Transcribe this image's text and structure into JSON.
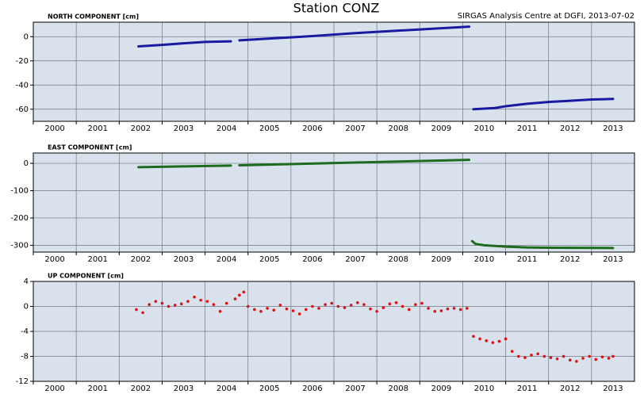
{
  "title": "Station CONZ",
  "subtitle": "SIRGAS Analysis Centre at DGFI, 2013-07-02",
  "chart_data": [
    {
      "type": "line",
      "title": "NORTH COMPONENT [cm]",
      "color": "#1a1aa0",
      "x": [
        2002.45,
        2003.0,
        2003.5,
        2004.0,
        2004.6,
        2004.7,
        2004.8,
        2005.5,
        2006.5,
        2007.5,
        2008.5,
        2009.5,
        2010.15,
        2010.2,
        2010.25,
        2010.75,
        2011.0,
        2011.5,
        2012.0,
        2012.5,
        2013.0,
        2013.5
      ],
      "values": [
        -8,
        -6.8,
        -5.5,
        -4.3,
        -3.8,
        null,
        -3,
        -1.5,
        0.5,
        3,
        5,
        7,
        8.3,
        null,
        -60,
        -59,
        -57.5,
        -55.5,
        -54,
        -53,
        -52,
        -51.5
      ],
      "xlim": [
        2000,
        2014
      ],
      "ylim": [
        -70,
        12
      ],
      "xticks": [
        2000,
        2001,
        2002,
        2003,
        2004,
        2005,
        2006,
        2007,
        2008,
        2009,
        2010,
        2011,
        2012,
        2013
      ],
      "yticks": [
        0,
        -20,
        -40,
        -60
      ],
      "grid": true
    },
    {
      "type": "line",
      "title": "EAST COMPONENT [cm]",
      "color": "#1e6b1e",
      "x": [
        2002.45,
        2003.5,
        2004.6,
        2004.7,
        2004.8,
        2007.5,
        2010.15,
        2010.2,
        2010.22,
        2010.3,
        2010.5,
        2011.0,
        2011.5,
        2012.0,
        2013.5
      ],
      "values": [
        -14,
        -11,
        -8,
        null,
        -7,
        3,
        13,
        null,
        -285,
        -295,
        -300,
        -305,
        -308,
        -309,
        -310
      ],
      "xlim": [
        2000,
        2014
      ],
      "ylim": [
        -325,
        38
      ],
      "xticks": [
        2000,
        2001,
        2002,
        2003,
        2004,
        2005,
        2006,
        2007,
        2008,
        2009,
        2010,
        2011,
        2012,
        2013
      ],
      "yticks": [
        0,
        -100,
        -200,
        -300
      ],
      "grid": true
    },
    {
      "type": "scatter",
      "title": "UP COMPONENT [cm]",
      "color": "#dd1111",
      "x": [
        2002.4,
        2002.55,
        2002.7,
        2002.85,
        2003.0,
        2003.15,
        2003.3,
        2003.45,
        2003.6,
        2003.75,
        2003.9,
        2004.05,
        2004.2,
        2004.35,
        2004.5,
        2004.7,
        2004.8,
        2004.9,
        2005.0,
        2005.15,
        2005.3,
        2005.45,
        2005.6,
        2005.75,
        2005.9,
        2006.05,
        2006.2,
        2006.35,
        2006.5,
        2006.65,
        2006.8,
        2006.95,
        2007.1,
        2007.25,
        2007.4,
        2007.55,
        2007.7,
        2007.85,
        2008.0,
        2008.15,
        2008.3,
        2008.45,
        2008.6,
        2008.75,
        2008.9,
        2009.05,
        2009.2,
        2009.35,
        2009.5,
        2009.65,
        2009.8,
        2009.95,
        2010.1,
        2010.25,
        2010.4,
        2010.55,
        2010.7,
        2010.85,
        2011.0,
        2011.15,
        2011.3,
        2011.45,
        2011.6,
        2011.75,
        2011.9,
        2012.05,
        2012.2,
        2012.35,
        2012.5,
        2012.65,
        2012.8,
        2012.95,
        2013.1,
        2013.25,
        2013.4,
        2013.5
      ],
      "values": [
        -0.5,
        -1,
        0.3,
        0.8,
        0.5,
        0,
        0.2,
        0.4,
        0.8,
        1.5,
        1,
        0.8,
        0.3,
        -0.8,
        0.5,
        1.2,
        1.8,
        2.3,
        0,
        -0.5,
        -0.8,
        -0.3,
        -0.6,
        0.2,
        -0.4,
        -0.7,
        -1.2,
        -0.5,
        0,
        -0.3,
        0.3,
        0.5,
        0,
        -0.2,
        0.2,
        0.6,
        0.3,
        -0.4,
        -0.8,
        -0.2,
        0.4,
        0.6,
        0,
        -0.5,
        0.3,
        0.5,
        -0.3,
        -0.8,
        -0.7,
        -0.4,
        -0.3,
        -0.5,
        -0.3,
        -4.8,
        -5.2,
        -5.5,
        -5.8,
        -5.6,
        -5.2,
        -7.2,
        -8,
        -8.2,
        -7.8,
        -7.6,
        -8,
        -8.2,
        -8.4,
        -8,
        -8.6,
        -8.8,
        -8.3,
        -8,
        -8.5,
        -8.1,
        -8.3,
        -8
      ],
      "xlim": [
        2000,
        2014
      ],
      "ylim": [
        -12,
        4
      ],
      "xticks": [
        2000,
        2001,
        2002,
        2003,
        2004,
        2005,
        2006,
        2007,
        2008,
        2009,
        2010,
        2011,
        2012,
        2013
      ],
      "yticks": [
        4,
        0,
        -4,
        -8,
        -12
      ],
      "grid": true
    }
  ]
}
